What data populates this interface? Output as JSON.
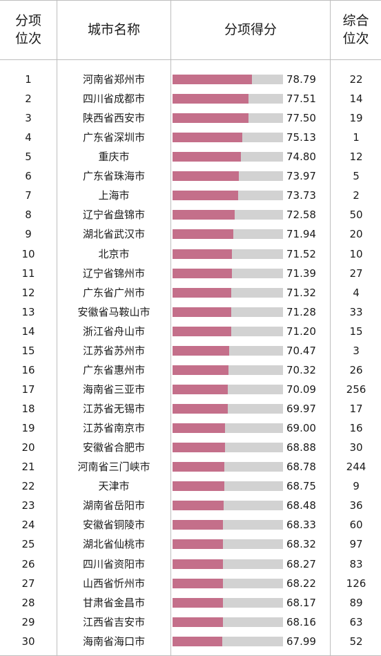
{
  "header": {
    "rank_line1": "分项",
    "rank_line2": "位次",
    "city": "城市名称",
    "score": "分项得分",
    "overall_line1": "综合",
    "overall_line2": "位次"
  },
  "colors": {
    "bar": "#c46f8a",
    "track": "#d2d2d2",
    "grid": "#bdbdbd"
  },
  "chart_data": {
    "type": "bar",
    "categories": [
      "河南省郑州市",
      "四川省成都市",
      "陕西省西安市",
      "广东省深圳市",
      "重庆市",
      "广东省珠海市",
      "上海市",
      "辽宁省盘锦市",
      "湖北省武汉市",
      "北京市",
      "辽宁省锦州市",
      "广东省广州市",
      "安徽省马鞍山市",
      "浙江省舟山市",
      "江苏省苏州市",
      "广东省惠州市",
      "海南省三亚市",
      "江苏省无锡市",
      "江苏省南京市",
      "安徽省合肥市",
      "河南省三门峡市",
      "天津市",
      "湖南省岳阳市",
      "安徽省铜陵市",
      "湖北省仙桃市",
      "四川省资阳市",
      "山西省忻州市",
      "甘肃省金昌市",
      "江西省吉安市",
      "海南省海口市"
    ],
    "values": [
      78.79,
      77.51,
      77.5,
      75.13,
      74.8,
      73.97,
      73.73,
      72.58,
      71.94,
      71.52,
      71.39,
      71.32,
      71.28,
      71.2,
      70.47,
      70.32,
      70.09,
      69.97,
      69.0,
      68.88,
      68.78,
      68.75,
      68.48,
      68.33,
      68.32,
      68.27,
      68.22,
      68.17,
      68.16,
      67.99
    ],
    "ylim": [
      0,
      100
    ]
  },
  "rows": [
    {
      "rank": "1",
      "city": "河南省郑州市",
      "score": "78.79",
      "overall": "22"
    },
    {
      "rank": "2",
      "city": "四川省成都市",
      "score": "77.51",
      "overall": "14"
    },
    {
      "rank": "3",
      "city": "陕西省西安市",
      "score": "77.50",
      "overall": "19"
    },
    {
      "rank": "4",
      "city": "广东省深圳市",
      "score": "75.13",
      "overall": "1"
    },
    {
      "rank": "5",
      "city": "重庆市",
      "score": "74.80",
      "overall": "12"
    },
    {
      "rank": "6",
      "city": "广东省珠海市",
      "score": "73.97",
      "overall": "5"
    },
    {
      "rank": "7",
      "city": "上海市",
      "score": "73.73",
      "overall": "2"
    },
    {
      "rank": "8",
      "city": "辽宁省盘锦市",
      "score": "72.58",
      "overall": "50"
    },
    {
      "rank": "9",
      "city": "湖北省武汉市",
      "score": "71.94",
      "overall": "20"
    },
    {
      "rank": "10",
      "city": "北京市",
      "score": "71.52",
      "overall": "10"
    },
    {
      "rank": "11",
      "city": "辽宁省锦州市",
      "score": "71.39",
      "overall": "27"
    },
    {
      "rank": "12",
      "city": "广东省广州市",
      "score": "71.32",
      "overall": "4"
    },
    {
      "rank": "13",
      "city": "安徽省马鞍山市",
      "score": "71.28",
      "overall": "33"
    },
    {
      "rank": "14",
      "city": "浙江省舟山市",
      "score": "71.20",
      "overall": "15"
    },
    {
      "rank": "15",
      "city": "江苏省苏州市",
      "score": "70.47",
      "overall": "3"
    },
    {
      "rank": "16",
      "city": "广东省惠州市",
      "score": "70.32",
      "overall": "26"
    },
    {
      "rank": "17",
      "city": "海南省三亚市",
      "score": "70.09",
      "overall": "256"
    },
    {
      "rank": "18",
      "city": "江苏省无锡市",
      "score": "69.97",
      "overall": "17"
    },
    {
      "rank": "19",
      "city": "江苏省南京市",
      "score": "69.00",
      "overall": "16"
    },
    {
      "rank": "20",
      "city": "安徽省合肥市",
      "score": "68.88",
      "overall": "30"
    },
    {
      "rank": "21",
      "city": "河南省三门峡市",
      "score": "68.78",
      "overall": "244"
    },
    {
      "rank": "22",
      "city": "天津市",
      "score": "68.75",
      "overall": "9"
    },
    {
      "rank": "23",
      "city": "湖南省岳阳市",
      "score": "68.48",
      "overall": "36"
    },
    {
      "rank": "24",
      "city": "安徽省铜陵市",
      "score": "68.33",
      "overall": "60"
    },
    {
      "rank": "25",
      "city": "湖北省仙桃市",
      "score": "68.32",
      "overall": "97"
    },
    {
      "rank": "26",
      "city": "四川省资阳市",
      "score": "68.27",
      "overall": "83"
    },
    {
      "rank": "27",
      "city": "山西省忻州市",
      "score": "68.22",
      "overall": "126"
    },
    {
      "rank": "28",
      "city": "甘肃省金昌市",
      "score": "68.17",
      "overall": "89"
    },
    {
      "rank": "29",
      "city": "江西省吉安市",
      "score": "68.16",
      "overall": "63"
    },
    {
      "rank": "30",
      "city": "海南省海口市",
      "score": "67.99",
      "overall": "52"
    }
  ]
}
